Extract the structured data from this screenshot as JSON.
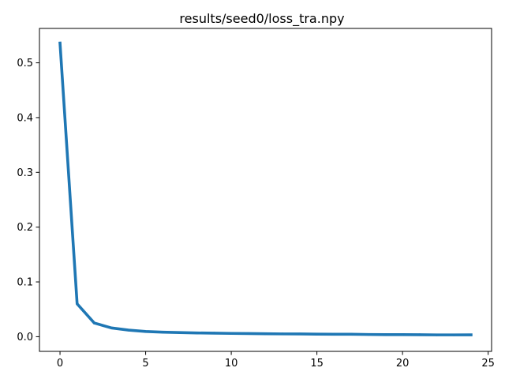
{
  "chart_data": {
    "type": "line",
    "title": "results/seed0/loss_tra.npy",
    "xlabel": "",
    "ylabel": "",
    "xlim": [
      -1.2,
      25.2
    ],
    "ylim": [
      -0.0268,
      0.5628
    ],
    "xticks": [
      0,
      5,
      10,
      15,
      20,
      25
    ],
    "yticks": [
      0.0,
      0.1,
      0.2,
      0.3,
      0.4,
      0.5
    ],
    "ytick_labels": [
      "0.0",
      "0.1",
      "0.2",
      "0.3",
      "0.4",
      "0.5"
    ],
    "grid": false,
    "legend": false,
    "series": [
      {
        "color": "#1f77b4",
        "x": [
          0,
          1,
          2,
          3,
          4,
          5,
          6,
          7,
          8,
          9,
          10,
          11,
          12,
          13,
          14,
          15,
          16,
          17,
          18,
          19,
          20,
          21,
          22,
          23,
          24
        ],
        "y": [
          0.536,
          0.06,
          0.025,
          0.016,
          0.012,
          0.0095,
          0.0082,
          0.0075,
          0.0068,
          0.0065,
          0.006,
          0.0057,
          0.0054,
          0.0051,
          0.005,
          0.0046,
          0.0044,
          0.0045,
          0.004,
          0.0037,
          0.0037,
          0.0036,
          0.0033,
          0.0033,
          0.0034
        ]
      }
    ]
  }
}
